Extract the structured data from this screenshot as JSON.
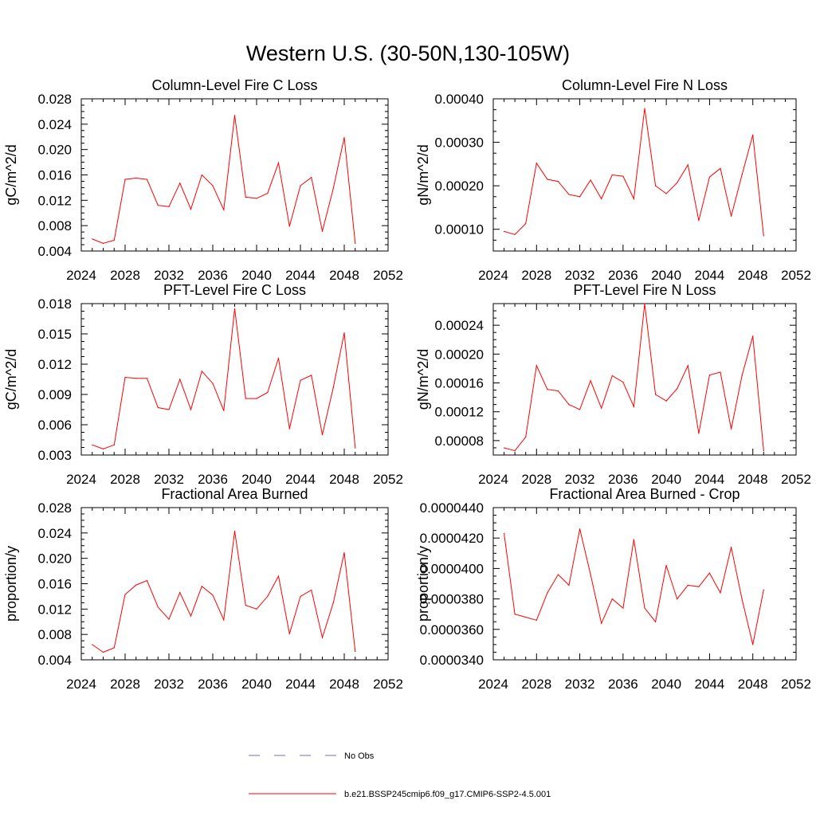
{
  "title": "Western U.S. (30-50N,130-105W)",
  "legend": {
    "items": [
      {
        "label": "No Obs",
        "color": "#6b6bd6",
        "dash": true
      },
      {
        "label": "b.e21.BSSP245cmip6.f09_g17.CMIP6-SSP2-4.5.001",
        "color": "#ff0000",
        "dash": false
      }
    ]
  },
  "chart_data": [
    {
      "type": "line",
      "title": "Column-Level Fire C Loss",
      "ylabel": "gC/m^2/d",
      "xlim": [
        2024,
        2052
      ],
      "xticks": [
        "2024",
        "2028",
        "2032",
        "2036",
        "2040",
        "2044",
        "2048",
        "2052"
      ],
      "ylim": [
        0.004,
        0.028
      ],
      "yticks": [
        "0.004",
        "0.008",
        "0.012",
        "0.016",
        "0.020",
        "0.024",
        "0.028"
      ],
      "series": [
        {
          "color": "#ff0000",
          "x": [
            2025,
            2026,
            2027,
            2028,
            2029,
            2030,
            2031,
            2032,
            2033,
            2034,
            2035,
            2036,
            2037,
            2038,
            2039,
            2040,
            2041,
            2042,
            2043,
            2044,
            2045,
            2046,
            2047,
            2048,
            2049
          ],
          "values": [
            0.0059,
            0.0052,
            0.0057,
            0.0153,
            0.0155,
            0.0153,
            0.0112,
            0.011,
            0.0147,
            0.0106,
            0.016,
            0.0143,
            0.0105,
            0.0254,
            0.0125,
            0.0123,
            0.0131,
            0.0179,
            0.0079,
            0.0143,
            0.0156,
            0.0071,
            0.0139,
            0.0219,
            0.0052
          ]
        }
      ]
    },
    {
      "type": "line",
      "title": "Column-Level Fire N Loss",
      "ylabel": "gN/m^2/d",
      "xlim": [
        2024,
        2052
      ],
      "xticks": [
        "2024",
        "2028",
        "2032",
        "2036",
        "2040",
        "2044",
        "2048",
        "2052"
      ],
      "ylim": [
        5e-05,
        0.0004
      ],
      "yticks": [
        "0.00010",
        "0.00020",
        "0.00030",
        "0.00040"
      ],
      "series": [
        {
          "color": "#ff0000",
          "x": [
            2025,
            2026,
            2027,
            2028,
            2029,
            2030,
            2031,
            2032,
            2033,
            2034,
            2035,
            2036,
            2037,
            2038,
            2039,
            2040,
            2041,
            2042,
            2043,
            2044,
            2045,
            2046,
            2047,
            2048,
            2049
          ],
          "values": [
            9.5e-05,
            8.8e-05,
            0.000113,
            0.000252,
            0.000215,
            0.00021,
            0.00018,
            0.000175,
            0.000213,
            0.00017,
            0.000225,
            0.000222,
            0.00017,
            0.000378,
            0.0002,
            0.000182,
            0.000207,
            0.000248,
            0.00012,
            0.00022,
            0.00024,
            0.00013,
            0.000225,
            0.000317,
            8.5e-05
          ]
        }
      ]
    },
    {
      "type": "line",
      "title": "PFT-Level Fire C Loss",
      "ylabel": "gC/m^2/d",
      "xlim": [
        2024,
        2052
      ],
      "xticks": [
        "2024",
        "2028",
        "2032",
        "2036",
        "2040",
        "2044",
        "2048",
        "2052"
      ],
      "ylim": [
        0.003,
        0.018
      ],
      "yticks": [
        "0.003",
        "0.006",
        "0.009",
        "0.012",
        "0.015",
        "0.018"
      ],
      "series": [
        {
          "color": "#ff0000",
          "x": [
            2025,
            2026,
            2027,
            2028,
            2029,
            2030,
            2031,
            2032,
            2033,
            2034,
            2035,
            2036,
            2037,
            2038,
            2039,
            2040,
            2041,
            2042,
            2043,
            2044,
            2045,
            2046,
            2047,
            2048,
            2049
          ],
          "values": [
            0.004,
            0.0036,
            0.004,
            0.0107,
            0.0106,
            0.0106,
            0.0077,
            0.0075,
            0.0105,
            0.0075,
            0.0113,
            0.0101,
            0.0074,
            0.0175,
            0.0086,
            0.0086,
            0.0092,
            0.0126,
            0.0056,
            0.0104,
            0.0109,
            0.005,
            0.0097,
            0.0151,
            0.0037
          ]
        }
      ]
    },
    {
      "type": "line",
      "title": "PFT-Level Fire N Loss",
      "ylabel": "gN/m^2/d",
      "xlim": [
        2024,
        2052
      ],
      "xticks": [
        "2024",
        "2028",
        "2032",
        "2036",
        "2040",
        "2044",
        "2048",
        "2052"
      ],
      "ylim": [
        6e-05,
        0.00027
      ],
      "yticks": [
        "0.00008",
        "0.00012",
        "0.00016",
        "0.00020",
        "0.00024"
      ],
      "series": [
        {
          "color": "#ff0000",
          "x": [
            2025,
            2026,
            2027,
            2028,
            2029,
            2030,
            2031,
            2032,
            2033,
            2034,
            2035,
            2036,
            2037,
            2038,
            2039,
            2040,
            2041,
            2042,
            2043,
            2044,
            2045,
            2046,
            2047,
            2048,
            2049
          ],
          "values": [
            7e-05,
            6.6e-05,
            8.5e-05,
            0.000184,
            0.000151,
            0.000149,
            0.00013,
            0.000123,
            0.000163,
            0.000125,
            0.00017,
            0.000161,
            0.000127,
            0.00027,
            0.000144,
            0.000135,
            0.000152,
            0.000184,
            9e-05,
            0.000171,
            0.000175,
            9.6e-05,
            0.00017,
            0.000225,
            6.6e-05
          ]
        }
      ]
    },
    {
      "type": "line",
      "title": "Fractional Area Burned",
      "ylabel": "proportion/y",
      "xlim": [
        2024,
        2052
      ],
      "xticks": [
        "2024",
        "2028",
        "2032",
        "2036",
        "2040",
        "2044",
        "2048",
        "2052"
      ],
      "ylim": [
        0.004,
        0.028
      ],
      "yticks": [
        "0.004",
        "0.008",
        "0.012",
        "0.016",
        "0.020",
        "0.024",
        "0.028"
      ],
      "series": [
        {
          "color": "#ff0000",
          "x": [
            2025,
            2026,
            2027,
            2028,
            2029,
            2030,
            2031,
            2032,
            2033,
            2034,
            2035,
            2036,
            2037,
            2038,
            2039,
            2040,
            2041,
            2042,
            2043,
            2044,
            2045,
            2046,
            2047,
            2048,
            2049
          ],
          "values": [
            0.0064,
            0.0052,
            0.0059,
            0.0143,
            0.0158,
            0.0165,
            0.0123,
            0.0104,
            0.0146,
            0.0109,
            0.0156,
            0.0142,
            0.0103,
            0.0243,
            0.0126,
            0.012,
            0.014,
            0.0172,
            0.0081,
            0.014,
            0.015,
            0.0075,
            0.013,
            0.0209,
            0.0053
          ]
        }
      ]
    },
    {
      "type": "line",
      "title": "Fractional Area Burned - Crop",
      "ylabel": "proportion/y",
      "xlim": [
        2024,
        2052
      ],
      "xticks": [
        "2024",
        "2028",
        "2032",
        "2036",
        "2040",
        "2044",
        "2048",
        "2052"
      ],
      "ylim": [
        3.4e-05,
        4.4e-05
      ],
      "yticks": [
        "0.0000340",
        "0.0000360",
        "0.0000380",
        "0.0000400",
        "0.0000420",
        "0.0000440"
      ],
      "series": [
        {
          "color": "#ff0000",
          "x": [
            2025,
            2026,
            2027,
            2028,
            2029,
            2030,
            2031,
            2032,
            2033,
            2034,
            2035,
            2036,
            2037,
            2038,
            2039,
            2040,
            2041,
            2042,
            2043,
            2044,
            2045,
            2046,
            2047,
            2048,
            2049
          ],
          "values": [
            4.23e-05,
            3.7e-05,
            3.68e-05,
            3.66e-05,
            3.84e-05,
            3.96e-05,
            3.89e-05,
            4.26e-05,
            3.96e-05,
            3.64e-05,
            3.8e-05,
            3.74e-05,
            4.19e-05,
            3.74e-05,
            3.65e-05,
            4.02e-05,
            3.8e-05,
            3.89e-05,
            3.88e-05,
            3.97e-05,
            3.84e-05,
            4.14e-05,
            3.8e-05,
            3.5e-05,
            3.86e-05
          ]
        }
      ]
    }
  ]
}
